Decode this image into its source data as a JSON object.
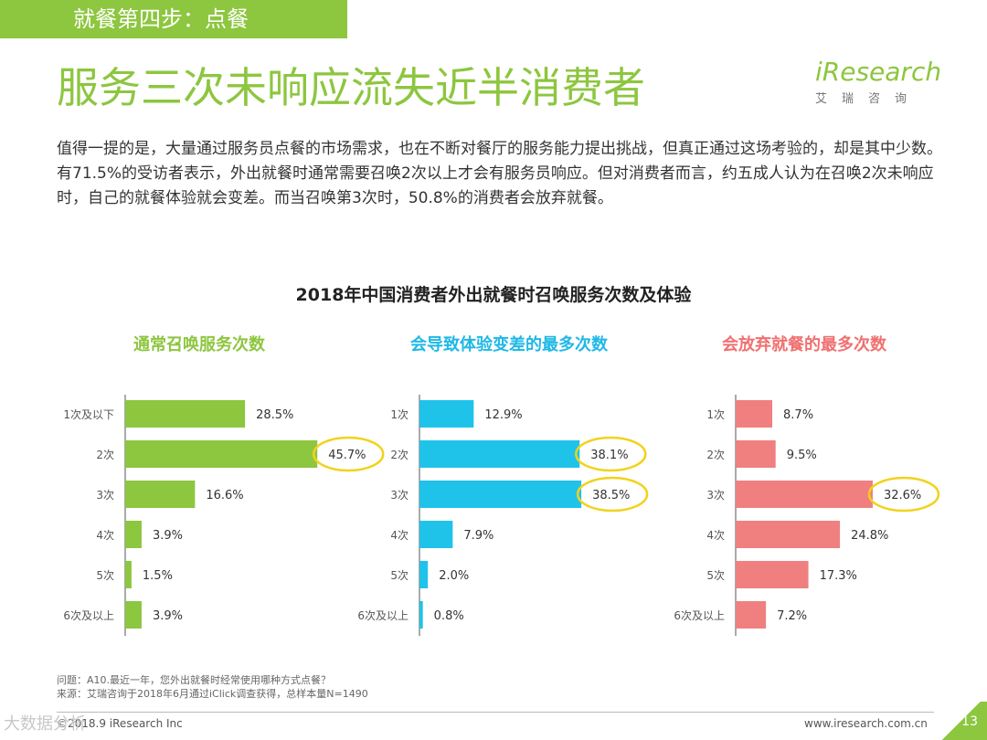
{
  "header": {
    "section_tag": "就餐第四步：点餐"
  },
  "page_title": "服务三次未响应流失近半消费者",
  "logo": {
    "brand": "iResearch",
    "sub": "艾瑞咨询"
  },
  "intro_text": "值得一提的是，大量通过服务员点餐的市场需求，也在不断对餐厅的服务能力提出挑战，但真正通过这场考验的，却是其中少数。有71.5%的受访者表示，外出就餐时通常需要召唤2次以上才会有服务员响应。但对消费者而言，约五成人认为在召唤2次未响应时，自己的就餐体验就会变差。而当召唤第3次时，50.8%的消费者会放弃就餐。",
  "chart_heading": "2018年中国消费者外出就餐时召唤服务次数及体验",
  "chart_data": [
    {
      "type": "bar",
      "orientation": "horizontal",
      "title": "通常召唤服务次数",
      "color": "#8dc63f",
      "title_color": "#8dc63f",
      "categories": [
        "1次及以下",
        "2次",
        "3次",
        "4次",
        "5次",
        "6次及以上"
      ],
      "values": [
        28.5,
        45.7,
        16.6,
        3.9,
        1.5,
        3.9
      ],
      "labels": [
        "28.5%",
        "45.7%",
        "16.6%",
        "3.9%",
        "1.5%",
        "3.9%"
      ],
      "highlight_index": [
        1
      ],
      "xlim": [
        0,
        50
      ]
    },
    {
      "type": "bar",
      "orientation": "horizontal",
      "title": "会导致体验变差的最多次数",
      "color": "#1fc3ea",
      "title_color": "#1fb8e6",
      "categories": [
        "1次",
        "2次",
        "3次",
        "4次",
        "5次",
        "6次及以上"
      ],
      "values": [
        12.9,
        38.1,
        38.5,
        7.9,
        2.0,
        0.8
      ],
      "labels": [
        "12.9%",
        "38.1%",
        "38.5%",
        "7.9%",
        "2.0%",
        "0.8%"
      ],
      "highlight_index": [
        1,
        2
      ],
      "xlim": [
        0,
        50
      ]
    },
    {
      "type": "bar",
      "orientation": "horizontal",
      "title": "会放弃就餐的最多次数",
      "color": "#f08080",
      "title_color": "#f07070",
      "categories": [
        "1次",
        "2次",
        "3次",
        "4次",
        "5次",
        "6次及以上"
      ],
      "values": [
        8.7,
        9.5,
        32.6,
        24.8,
        17.3,
        7.2
      ],
      "labels": [
        "8.7%",
        "9.5%",
        "32.6%",
        "24.8%",
        "17.3%",
        "7.2%"
      ],
      "highlight_index": [
        2
      ],
      "xlim": [
        0,
        50
      ]
    }
  ],
  "footer": {
    "question": "问题：A10.最近一年，您外出就餐时经常使用哪种方式点餐？",
    "source": "来源：艾瑞咨询于2018年6月通过iClick调查获得，总样本量N=1490",
    "copyright": "©2018.9 iResearch Inc",
    "website": "www.iresearch.com.cn",
    "page_number": "13",
    "watermark": "大数据分析"
  },
  "colors": {
    "accent": "#8dc63f",
    "highlight_ring": "#f2d21b"
  }
}
